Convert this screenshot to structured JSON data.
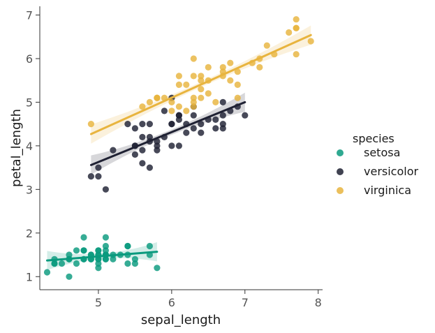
{
  "chart_data": {
    "type": "scatter",
    "title": "",
    "xlabel": "sepal_length",
    "ylabel": "petal_length",
    "xlim": [
      4.2,
      8.06
    ],
    "ylim": [
      0.7,
      7.2
    ],
    "xticks": [
      5,
      6,
      7,
      8
    ],
    "yticks": [
      1,
      2,
      3,
      4,
      5,
      6,
      7
    ],
    "grid": false,
    "legend": {
      "title": "species",
      "placement": "right"
    },
    "series": [
      {
        "name": "setosa",
        "color": "#0a9a7e",
        "points": [
          [
            4.3,
            1.1
          ],
          [
            4.4,
            1.4
          ],
          [
            4.4,
            1.3
          ],
          [
            4.4,
            1.3
          ],
          [
            4.5,
            1.3
          ],
          [
            4.6,
            1.4
          ],
          [
            4.6,
            1.5
          ],
          [
            4.6,
            1.0
          ],
          [
            4.6,
            1.4
          ],
          [
            4.7,
            1.3
          ],
          [
            4.7,
            1.6
          ],
          [
            4.8,
            1.6
          ],
          [
            4.8,
            1.4
          ],
          [
            4.8,
            1.6
          ],
          [
            4.8,
            1.9
          ],
          [
            4.8,
            1.4
          ],
          [
            4.9,
            1.4
          ],
          [
            4.9,
            1.5
          ],
          [
            4.9,
            1.5
          ],
          [
            4.9,
            1.4
          ],
          [
            5.0,
            1.4
          ],
          [
            5.0,
            1.5
          ],
          [
            5.0,
            1.2
          ],
          [
            5.0,
            1.3
          ],
          [
            5.0,
            1.6
          ],
          [
            5.0,
            1.6
          ],
          [
            5.0,
            1.4
          ],
          [
            5.0,
            1.5
          ],
          [
            5.1,
            1.4
          ],
          [
            5.1,
            1.5
          ],
          [
            5.1,
            1.5
          ],
          [
            5.1,
            1.7
          ],
          [
            5.1,
            1.5
          ],
          [
            5.1,
            1.9
          ],
          [
            5.1,
            1.6
          ],
          [
            5.1,
            1.4
          ],
          [
            5.2,
            1.5
          ],
          [
            5.2,
            1.4
          ],
          [
            5.3,
            1.5
          ],
          [
            5.4,
            1.7
          ],
          [
            5.4,
            1.5
          ],
          [
            5.4,
            1.7
          ],
          [
            5.4,
            1.3
          ],
          [
            5.5,
            1.4
          ],
          [
            5.5,
            1.3
          ],
          [
            5.7,
            1.5
          ],
          [
            5.7,
            1.7
          ],
          [
            5.8,
            1.2
          ]
        ],
        "fit": {
          "x": [
            4.3,
            5.8
          ],
          "y": [
            1.37,
            1.57
          ]
        }
      },
      {
        "name": "versicolor",
        "color": "#1f2133",
        "points": [
          [
            4.9,
            3.3
          ],
          [
            5.0,
            3.5
          ],
          [
            5.0,
            3.3
          ],
          [
            5.1,
            3.0
          ],
          [
            5.2,
            3.9
          ],
          [
            5.4,
            4.5
          ],
          [
            5.5,
            4.0
          ],
          [
            5.5,
            4.4
          ],
          [
            5.5,
            3.8
          ],
          [
            5.5,
            4.0
          ],
          [
            5.6,
            3.9
          ],
          [
            5.6,
            4.5
          ],
          [
            5.6,
            4.2
          ],
          [
            5.6,
            3.6
          ],
          [
            5.7,
            4.5
          ],
          [
            5.7,
            3.5
          ],
          [
            5.7,
            4.2
          ],
          [
            5.7,
            4.1
          ],
          [
            5.8,
            4.1
          ],
          [
            5.8,
            4.0
          ],
          [
            5.8,
            3.9
          ],
          [
            5.9,
            4.8
          ],
          [
            5.9,
            4.2
          ],
          [
            6.0,
            4.0
          ],
          [
            6.0,
            4.5
          ],
          [
            6.0,
            5.1
          ],
          [
            6.0,
            4.5
          ],
          [
            6.1,
            4.7
          ],
          [
            6.1,
            4.0
          ],
          [
            6.1,
            4.6
          ],
          [
            6.1,
            4.7
          ],
          [
            6.2,
            4.3
          ],
          [
            6.2,
            4.5
          ],
          [
            6.3,
            4.7
          ],
          [
            6.3,
            4.9
          ],
          [
            6.3,
            4.4
          ],
          [
            6.4,
            4.5
          ],
          [
            6.4,
            4.3
          ],
          [
            6.5,
            4.6
          ],
          [
            6.6,
            4.6
          ],
          [
            6.6,
            4.4
          ],
          [
            6.7,
            4.4
          ],
          [
            6.7,
            4.7
          ],
          [
            6.7,
            5.0
          ],
          [
            6.7,
            4.5
          ],
          [
            6.8,
            4.8
          ],
          [
            6.9,
            4.9
          ],
          [
            7.0,
            4.7
          ]
        ],
        "fit": {
          "x": [
            4.9,
            7.0
          ],
          "y": [
            3.56,
            5.0
          ]
        }
      },
      {
        "name": "virginica",
        "color": "#e8b43e",
        "points": [
          [
            4.9,
            4.5
          ],
          [
            5.6,
            4.9
          ],
          [
            5.7,
            5.0
          ],
          [
            5.8,
            5.1
          ],
          [
            5.8,
            5.1
          ],
          [
            5.8,
            5.1
          ],
          [
            5.9,
            5.1
          ],
          [
            6.0,
            4.8
          ],
          [
            6.0,
            5.0
          ],
          [
            6.1,
            5.6
          ],
          [
            6.1,
            4.9
          ],
          [
            6.2,
            5.4
          ],
          [
            6.2,
            4.8
          ],
          [
            6.3,
            6.0
          ],
          [
            6.3,
            5.6
          ],
          [
            6.3,
            5.1
          ],
          [
            6.3,
            4.9
          ],
          [
            6.3,
            5.0
          ],
          [
            6.4,
            5.6
          ],
          [
            6.4,
            5.3
          ],
          [
            6.4,
            5.5
          ],
          [
            6.5,
            5.8
          ],
          [
            6.5,
            5.5
          ],
          [
            6.5,
            5.2
          ],
          [
            6.7,
            5.8
          ],
          [
            6.7,
            5.7
          ],
          [
            6.7,
            5.6
          ],
          [
            6.8,
            5.5
          ],
          [
            6.8,
            5.9
          ],
          [
            6.9,
            5.4
          ],
          [
            6.9,
            5.1
          ],
          [
            7.1,
            5.9
          ],
          [
            7.2,
            6.0
          ],
          [
            7.2,
            5.8
          ],
          [
            7.3,
            6.3
          ],
          [
            7.4,
            6.1
          ],
          [
            7.6,
            6.6
          ],
          [
            7.7,
            6.7
          ],
          [
            7.7,
            6.9
          ],
          [
            7.7,
            6.7
          ],
          [
            7.7,
            6.1
          ],
          [
            7.9,
            6.4
          ],
          [
            6.1,
            5.4
          ],
          [
            6.4,
            5.1
          ],
          [
            6.6,
            5.0
          ],
          [
            6.9,
            5.7
          ]
        ],
        "fit": {
          "x": [
            4.9,
            7.9
          ],
          "y": [
            4.27,
            6.54
          ]
        }
      }
    ]
  }
}
